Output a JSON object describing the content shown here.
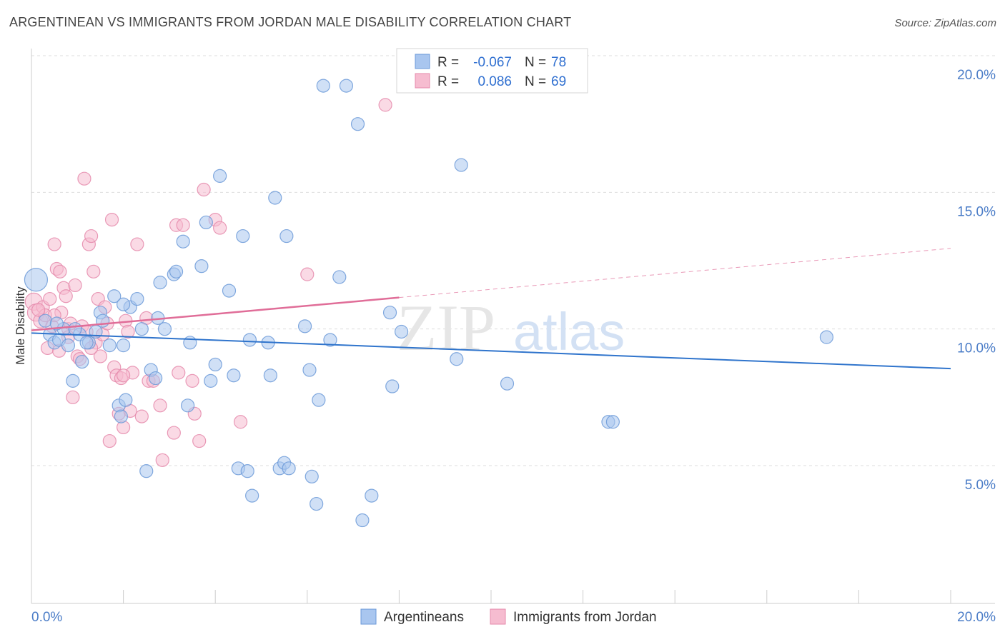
{
  "title": "ARGENTINEAN VS IMMIGRANTS FROM JORDAN MALE DISABILITY CORRELATION CHART",
  "source": "Source: ZipAtlas.com",
  "watermark": {
    "zip": "ZIP",
    "atlas": "atlas"
  },
  "colors": {
    "blue_fill": "#a9c6ef",
    "blue_stroke": "#6c9ad8",
    "blue_line": "#2f74cc",
    "pink_fill": "#f6bcd0",
    "pink_stroke": "#e58aab",
    "pink_line": "#e06d98",
    "grid": "#dddddd",
    "tick_label": "#4a7cc7"
  },
  "chart_data": {
    "type": "scatter",
    "title": "ARGENTINEAN VS IMMIGRANTS FROM JORDAN MALE DISABILITY CORRELATION CHART",
    "xlabel": "",
    "ylabel": "Male Disability",
    "xlim": [
      0,
      20
    ],
    "ylim": [
      0,
      20.5
    ],
    "x_tick_labels": {
      "left": "0.0%",
      "right": "20.0%"
    },
    "y_ticks": [
      {
        "value": 5,
        "label": "5.0%"
      },
      {
        "value": 10,
        "label": "10.0%"
      },
      {
        "value": 15,
        "label": "15.0%"
      },
      {
        "value": 20,
        "label": "20.0%"
      }
    ],
    "grid": true,
    "legend_placement": "top-center",
    "legend": [
      {
        "r_label": "R =",
        "r_value": "-0.067",
        "n_label": "N =",
        "n_value": "78"
      },
      {
        "r_label": "R =",
        "r_value": "0.086",
        "n_label": "N =",
        "n_value": "69"
      }
    ],
    "series": [
      {
        "name": "Argentineans",
        "color": "#a9c6ef",
        "trend": {
          "x": [
            0,
            20
          ],
          "y": [
            9.85,
            8.55
          ],
          "dashed_from": null
        },
        "points": [
          [
            0.1,
            11.8,
            16
          ],
          [
            0.3,
            10.3,
            9
          ],
          [
            0.4,
            9.8,
            9
          ],
          [
            0.5,
            9.5,
            9
          ],
          [
            0.6,
            9.6,
            9
          ],
          [
            0.7,
            10.0,
            9
          ],
          [
            0.8,
            9.4,
            9
          ],
          [
            0.9,
            8.1,
            9
          ],
          [
            1.05,
            9.8,
            9
          ],
          [
            1.1,
            8.8,
            9
          ],
          [
            1.25,
            9.5,
            9
          ],
          [
            1.4,
            9.9,
            9
          ],
          [
            1.5,
            10.6,
            9
          ],
          [
            1.55,
            10.3,
            9
          ],
          [
            1.7,
            9.4,
            9
          ],
          [
            1.8,
            11.2,
            9
          ],
          [
            1.9,
            7.2,
            9
          ],
          [
            1.95,
            6.8,
            9
          ],
          [
            2.0,
            9.4,
            9
          ],
          [
            2.05,
            7.4,
            9
          ],
          [
            2.15,
            10.8,
            9
          ],
          [
            2.3,
            11.1,
            9
          ],
          [
            2.4,
            10.0,
            9
          ],
          [
            2.6,
            8.5,
            9
          ],
          [
            2.5,
            4.8,
            9
          ],
          [
            2.75,
            10.4,
            9
          ],
          [
            2.8,
            11.7,
            9
          ],
          [
            2.9,
            10.0,
            9
          ],
          [
            2.7,
            8.2,
            9
          ],
          [
            3.1,
            12.0,
            9
          ],
          [
            3.15,
            12.1,
            9
          ],
          [
            3.3,
            13.2,
            9
          ],
          [
            3.4,
            7.2,
            9
          ],
          [
            3.45,
            9.5,
            9
          ],
          [
            3.7,
            12.3,
            9
          ],
          [
            3.8,
            13.9,
            9
          ],
          [
            3.9,
            8.1,
            9
          ],
          [
            4.0,
            8.7,
            9
          ],
          [
            4.1,
            15.6,
            9
          ],
          [
            4.3,
            11.4,
            9
          ],
          [
            4.4,
            8.3,
            9
          ],
          [
            4.5,
            4.9,
            9
          ],
          [
            4.6,
            13.4,
            9
          ],
          [
            4.7,
            4.8,
            9
          ],
          [
            4.75,
            9.6,
            9
          ],
          [
            4.8,
            3.9,
            9
          ],
          [
            5.15,
            9.5,
            9
          ],
          [
            5.2,
            8.3,
            9
          ],
          [
            5.3,
            14.8,
            9
          ],
          [
            5.4,
            4.9,
            9
          ],
          [
            5.5,
            5.1,
            9
          ],
          [
            5.55,
            13.4,
            9
          ],
          [
            5.6,
            4.9,
            9
          ],
          [
            5.95,
            10.1,
            9
          ],
          [
            6.05,
            8.5,
            9
          ],
          [
            6.1,
            4.6,
            9
          ],
          [
            6.2,
            3.6,
            9
          ],
          [
            6.25,
            7.4,
            9
          ],
          [
            6.35,
            18.9,
            9
          ],
          [
            6.5,
            9.6,
            9
          ],
          [
            6.7,
            11.9,
            9
          ],
          [
            6.85,
            18.9,
            9
          ],
          [
            7.1,
            17.5,
            9
          ],
          [
            7.2,
            3.0,
            9
          ],
          [
            7.4,
            3.9,
            9
          ],
          [
            7.8,
            10.6,
            9
          ],
          [
            7.85,
            7.9,
            9
          ],
          [
            8.05,
            9.9,
            9
          ],
          [
            9.25,
            8.9,
            9
          ],
          [
            9.35,
            16.0,
            9
          ],
          [
            10.35,
            8.0,
            9
          ],
          [
            12.55,
            6.6,
            9
          ],
          [
            12.65,
            6.6,
            9
          ],
          [
            17.3,
            9.7,
            9
          ],
          [
            2.0,
            10.9,
            9
          ],
          [
            1.2,
            9.5,
            9
          ],
          [
            0.55,
            10.2,
            9
          ],
          [
            0.95,
            10.0,
            9
          ]
        ]
      },
      {
        "name": "Immigrants from Jordan",
        "color": "#f6bcd0",
        "trend": {
          "x": [
            0,
            20
          ],
          "y": [
            9.95,
            12.95
          ],
          "dashed_from": 8.0
        },
        "points": [
          [
            0.05,
            11.0,
            12
          ],
          [
            0.1,
            10.6,
            12
          ],
          [
            0.2,
            10.3,
            10
          ],
          [
            0.25,
            10.8,
            9
          ],
          [
            0.3,
            10.5,
            9
          ],
          [
            0.35,
            9.3,
            9
          ],
          [
            0.4,
            11.1,
            9
          ],
          [
            0.45,
            10.1,
            9
          ],
          [
            0.5,
            13.1,
            9
          ],
          [
            0.55,
            12.2,
            9
          ],
          [
            0.6,
            9.2,
            9
          ],
          [
            0.62,
            12.1,
            9
          ],
          [
            0.65,
            10.6,
            9
          ],
          [
            0.7,
            11.5,
            9
          ],
          [
            0.75,
            11.2,
            9
          ],
          [
            0.8,
            10.0,
            9
          ],
          [
            0.85,
            10.2,
            9
          ],
          [
            0.9,
            7.5,
            9
          ],
          [
            0.95,
            11.6,
            9
          ],
          [
            1.0,
            9.0,
            9
          ],
          [
            1.05,
            8.9,
            9
          ],
          [
            1.1,
            10.1,
            9
          ],
          [
            1.15,
            15.5,
            9
          ],
          [
            1.2,
            9.9,
            9
          ],
          [
            1.25,
            13.1,
            9
          ],
          [
            1.3,
            13.4,
            9
          ],
          [
            1.35,
            12.1,
            9
          ],
          [
            1.4,
            9.5,
            9
          ],
          [
            1.45,
            11.1,
            9
          ],
          [
            1.5,
            9.0,
            9
          ],
          [
            1.55,
            9.8,
            9
          ],
          [
            1.6,
            10.8,
            9
          ],
          [
            1.65,
            10.2,
            9
          ],
          [
            1.7,
            5.9,
            9
          ],
          [
            1.75,
            14.0,
            9
          ],
          [
            1.8,
            8.6,
            9
          ],
          [
            1.85,
            8.3,
            9
          ],
          [
            1.9,
            6.9,
            9
          ],
          [
            1.95,
            8.2,
            9
          ],
          [
            2.0,
            6.4,
            9
          ],
          [
            2.05,
            10.3,
            9
          ],
          [
            2.1,
            9.9,
            9
          ],
          [
            2.15,
            7.0,
            9
          ],
          [
            2.2,
            8.4,
            9
          ],
          [
            2.3,
            13.1,
            9
          ],
          [
            2.4,
            6.8,
            9
          ],
          [
            2.5,
            10.4,
            9
          ],
          [
            2.55,
            8.1,
            9
          ],
          [
            2.65,
            8.1,
            9
          ],
          [
            2.8,
            7.2,
            9
          ],
          [
            2.85,
            5.2,
            9
          ],
          [
            3.1,
            6.2,
            9
          ],
          [
            3.15,
            13.8,
            9
          ],
          [
            3.2,
            8.4,
            9
          ],
          [
            3.3,
            13.8,
            9
          ],
          [
            3.5,
            8.1,
            9
          ],
          [
            3.55,
            6.9,
            9
          ],
          [
            3.65,
            5.9,
            9
          ],
          [
            3.75,
            15.1,
            9
          ],
          [
            4.0,
            14.0,
            9
          ],
          [
            4.1,
            13.7,
            9
          ],
          [
            4.55,
            6.6,
            9
          ],
          [
            6.0,
            12.0,
            9
          ],
          [
            7.7,
            18.2,
            9
          ],
          [
            0.15,
            10.7,
            9
          ],
          [
            0.5,
            10.5,
            9
          ],
          [
            0.8,
            9.7,
            9
          ],
          [
            1.3,
            9.3,
            9
          ],
          [
            2.0,
            8.3,
            9
          ]
        ]
      }
    ]
  }
}
